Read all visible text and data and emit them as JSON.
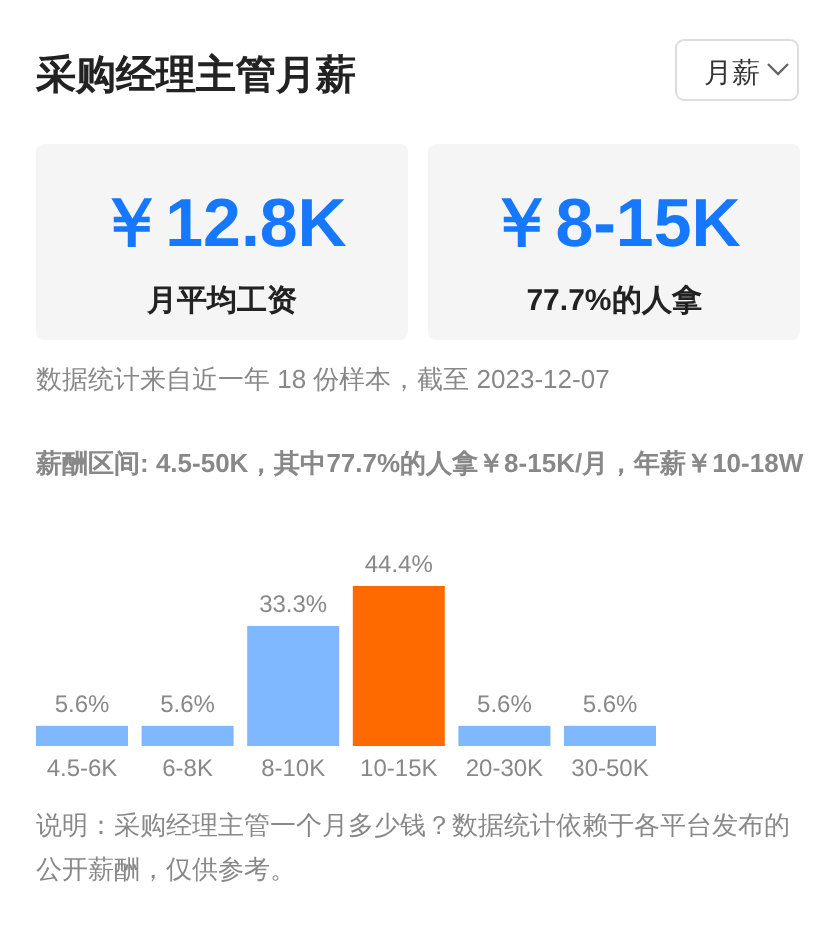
{
  "chart_data": [
    {
      "type": "other",
      "title": "采购经理主管月薪",
      "annotations": [
        "月薪",
        "￥12.8K",
        "月平均工资",
        "￥8-15K",
        "77.7%的人拿",
        "数据统计来自近一年 18 份样本，截至 2023-12-07"
      ]
    },
    {
      "type": "bar",
      "subtitle": "薪酬区间: 4.5-50K，其中77.7%的人拿￥8-15K/月，年薪￥10-18W",
      "categories": [
        "4.5-6K",
        "6-8K",
        "8-10K",
        "10-15K",
        "20-30K",
        "30-50K"
      ],
      "values": [
        5.6,
        5.6,
        33.3,
        44.4,
        5.6,
        5.6
      ],
      "colors": [
        "#7fb8ff",
        "#7fb8ff",
        "#7fb8ff",
        "#ff6a00",
        "#7fb8ff",
        "#7fb8ff"
      ],
      "value_labels": [
        "5.6%",
        "5.6%",
        "33.3%",
        "44.4%",
        "5.6%",
        "5.6%"
      ],
      "annotations": [
        "说明：采购经理主管一个月多少钱？数据统计依赖于各平台发布的公开薪酬，仅供参考。"
      ]
    }
  ]
}
